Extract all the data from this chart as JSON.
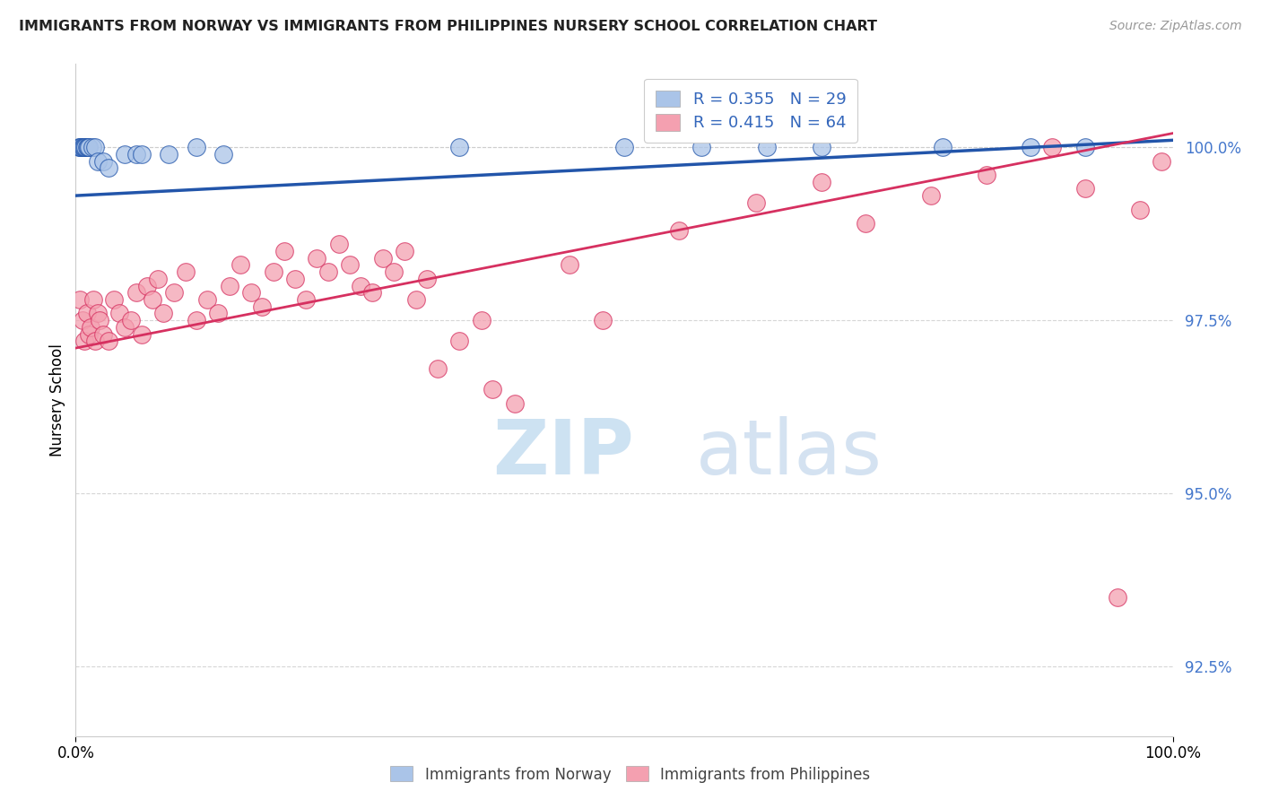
{
  "title": "IMMIGRANTS FROM NORWAY VS IMMIGRANTS FROM PHILIPPINES NURSERY SCHOOL CORRELATION CHART",
  "source": "Source: ZipAtlas.com",
  "ylabel": "Nursery School",
  "norway_label": "Immigrants from Norway",
  "philippines_label": "Immigrants from Philippines",
  "norway_R": 0.355,
  "norway_N": 29,
  "philippines_R": 0.415,
  "philippines_N": 64,
  "norway_color": "#aac4e8",
  "philippines_color": "#f4a0b0",
  "norway_line_color": "#2255aa",
  "philippines_line_color": "#d63060",
  "background_color": "#ffffff",
  "grid_color": "#cccccc",
  "xlim": [
    0,
    100
  ],
  "ylim": [
    91.5,
    101.2
  ],
  "yticks": [
    92.5,
    95.0,
    97.5,
    100.0
  ],
  "ytick_labels": [
    "92.5%",
    "95.0%",
    "97.5%",
    "100.0%"
  ],
  "xtick_labels": [
    "0.0%",
    "100.0%"
  ],
  "norway_trend_x": [
    0,
    100
  ],
  "norway_trend_y": [
    99.3,
    100.1
  ],
  "philippines_trend_x": [
    0,
    100
  ],
  "philippines_trend_y": [
    97.1,
    100.2
  ],
  "norway_pts_x": [
    0.3,
    0.4,
    0.5,
    0.6,
    0.7,
    0.8,
    0.9,
    1.0,
    1.1,
    1.2,
    1.5,
    1.8,
    2.0,
    2.5,
    3.0,
    4.5,
    5.5,
    6.0,
    8.5,
    11.0,
    13.5,
    35.0,
    50.0,
    57.0,
    63.0,
    68.0,
    79.0,
    87.0,
    92.0
  ],
  "norway_pts_y": [
    100.0,
    100.0,
    100.0,
    100.0,
    100.0,
    100.0,
    100.0,
    100.0,
    100.0,
    100.0,
    100.0,
    100.0,
    99.8,
    99.8,
    99.7,
    99.9,
    99.9,
    99.9,
    99.9,
    100.0,
    99.9,
    100.0,
    100.0,
    100.0,
    100.0,
    100.0,
    100.0,
    100.0,
    100.0
  ],
  "philippines_pts_x": [
    0.4,
    0.6,
    0.8,
    1.0,
    1.2,
    1.4,
    1.6,
    1.8,
    2.0,
    2.2,
    2.5,
    3.0,
    3.5,
    4.0,
    4.5,
    5.0,
    5.5,
    6.0,
    6.5,
    7.0,
    7.5,
    8.0,
    9.0,
    10.0,
    11.0,
    12.0,
    13.0,
    14.0,
    15.0,
    16.0,
    17.0,
    18.0,
    19.0,
    20.0,
    21.0,
    22.0,
    23.0,
    24.0,
    25.0,
    26.0,
    27.0,
    28.0,
    29.0,
    30.0,
    31.0,
    32.0,
    33.0,
    35.0,
    37.0,
    38.0,
    40.0,
    45.0,
    48.0,
    55.0,
    62.0,
    68.0,
    72.0,
    78.0,
    83.0,
    89.0,
    92.0,
    95.0,
    97.0,
    99.0
  ],
  "philippines_pts_y": [
    97.8,
    97.5,
    97.2,
    97.6,
    97.3,
    97.4,
    97.8,
    97.2,
    97.6,
    97.5,
    97.3,
    97.2,
    97.8,
    97.6,
    97.4,
    97.5,
    97.9,
    97.3,
    98.0,
    97.8,
    98.1,
    97.6,
    97.9,
    98.2,
    97.5,
    97.8,
    97.6,
    98.0,
    98.3,
    97.9,
    97.7,
    98.2,
    98.5,
    98.1,
    97.8,
    98.4,
    98.2,
    98.6,
    98.3,
    98.0,
    97.9,
    98.4,
    98.2,
    98.5,
    97.8,
    98.1,
    96.8,
    97.2,
    97.5,
    96.5,
    96.3,
    98.3,
    97.5,
    98.8,
    99.2,
    99.5,
    98.9,
    99.3,
    99.6,
    100.0,
    99.4,
    93.5,
    99.1,
    99.8
  ]
}
